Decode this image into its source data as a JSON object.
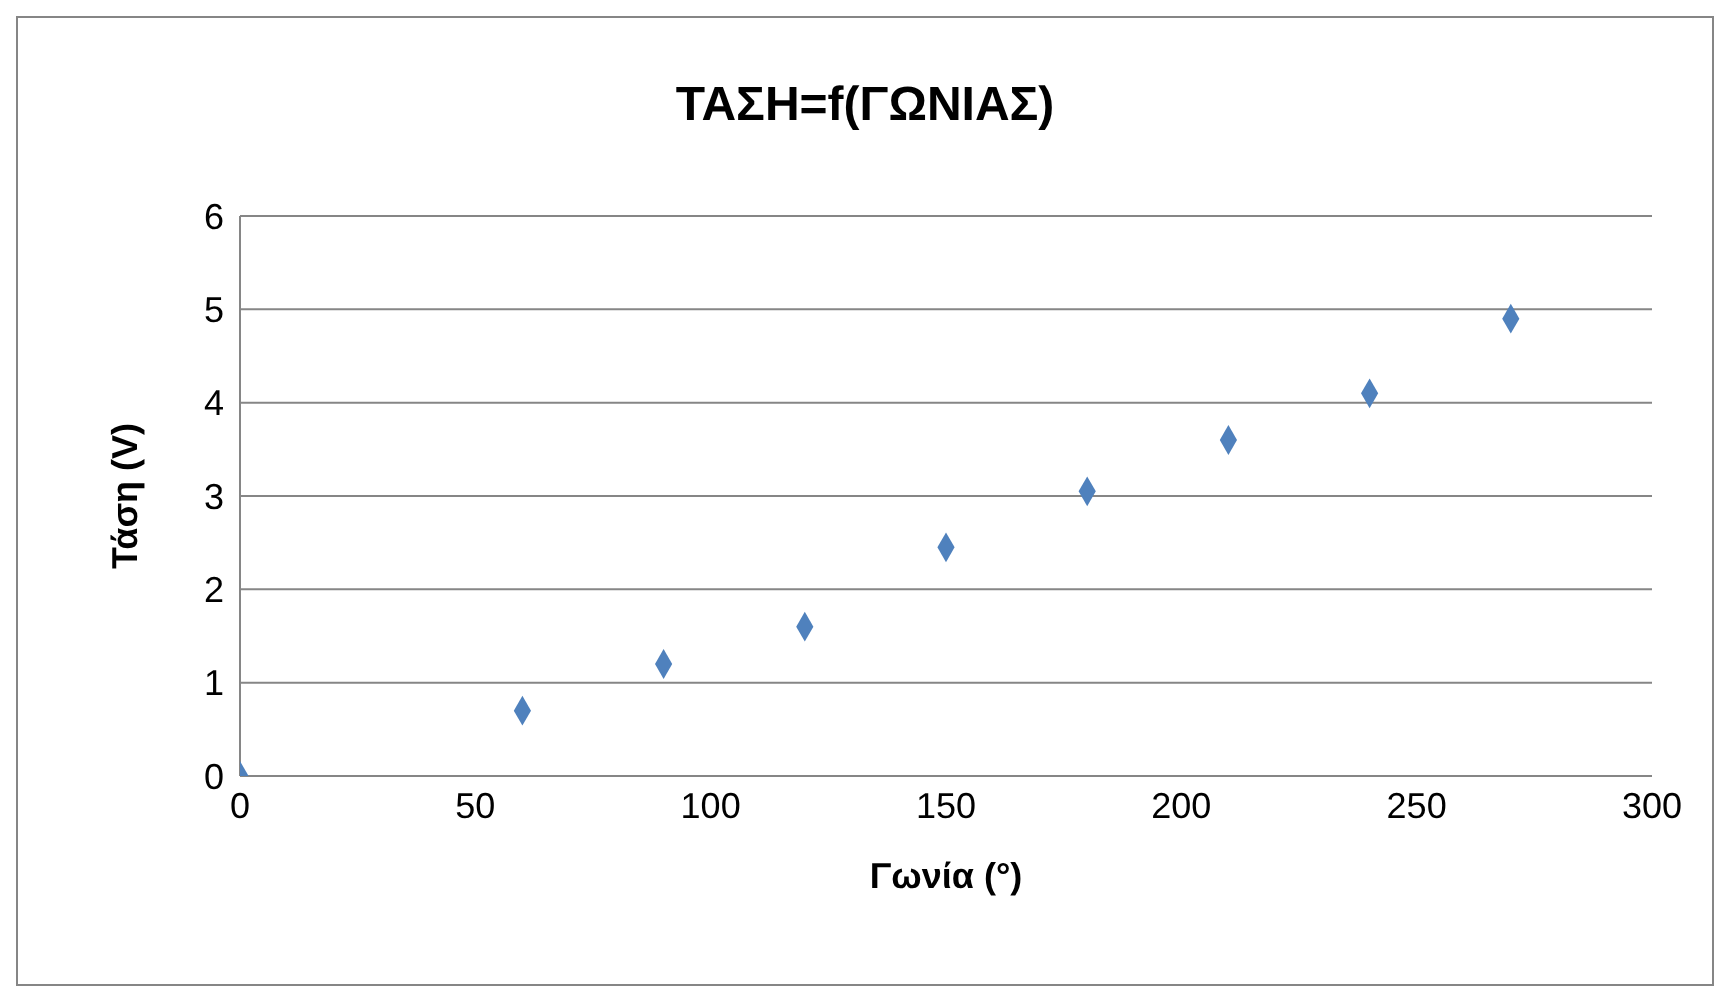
{
  "chart_data": {
    "type": "scatter",
    "title": "ΤΑΣΗ=f(ΓΩΝΙΑΣ)",
    "xlabel": "Γωνία (°)",
    "ylabel": "Τάση (V)",
    "x": [
      0,
      60,
      90,
      120,
      150,
      180,
      210,
      240,
      270
    ],
    "series": [
      {
        "color": "#4f81bd",
        "values": [
          0,
          0.7,
          1.2,
          1.6,
          2.45,
          3.05,
          3.6,
          4.1,
          4.9
        ]
      }
    ],
    "xlim": [
      0,
      300
    ],
    "xticks": [
      0,
      50,
      100,
      150,
      200,
      250,
      300
    ],
    "ylim": [
      0,
      6
    ],
    "yticks": [
      0,
      1,
      2,
      3,
      4,
      5,
      6
    ],
    "grid": "y",
    "marker": "diamond",
    "legend": false
  }
}
